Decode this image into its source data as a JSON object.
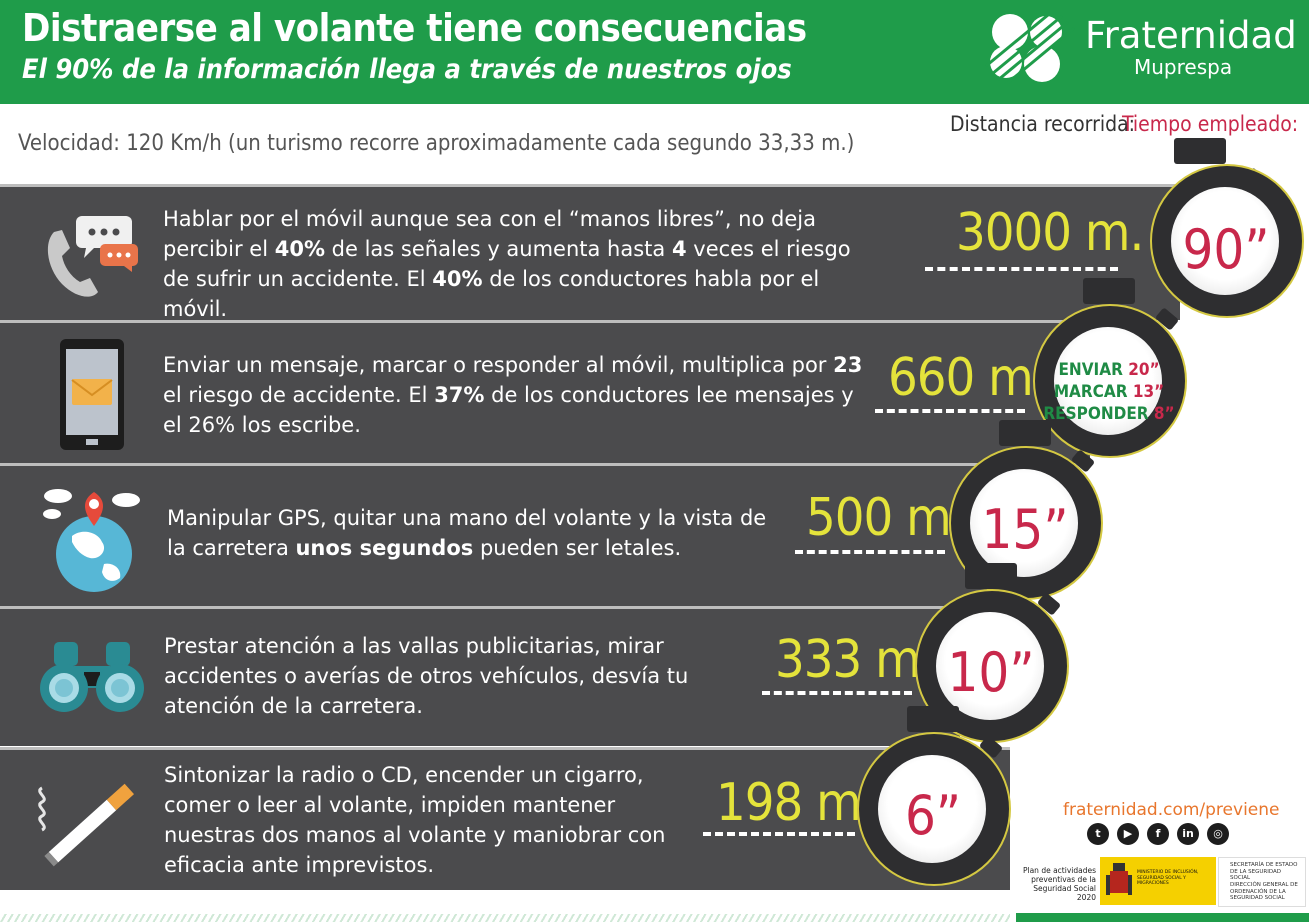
{
  "header": {
    "title": "Distraerse al volante tiene consecuencias",
    "subtitle": "El 90% de la información llega a través de nuestros ojos",
    "brand_name": "Fraternidad",
    "brand_sub": "Muprespa"
  },
  "speed_note": "Velocidad: 120 Km/h (un turismo recorre aproximadamente cada segundo 33,33 m.)",
  "distance_label": "Distancia recorrida:",
  "time_label": "Tiempo empleado:",
  "rows": [
    {
      "icon": "phone-chat-icon",
      "text_parts": [
        "Hablar por el móvil aunque sea con el “manos libres”, no deja percibir el ",
        "40%",
        " de las señales y aumenta hasta ",
        "4",
        " veces el riesgo de sufrir un accidente. El ",
        "40%",
        " de los conductores habla por el móvil."
      ],
      "distance": "3000 m.",
      "time": "90”"
    },
    {
      "icon": "smartphone-message-icon",
      "text_parts": [
        "Enviar un mensaje, marcar o responder al móvil, multiplica por ",
        "23",
        " el riesgo de accidente. El ",
        "37%",
        " de los conductores lee mensajes y el 26% los escribe."
      ],
      "distance": "660 m.",
      "time_lines": [
        {
          "label": "ENVIAR",
          "value": "20”"
        },
        {
          "label": "MARCAR",
          "value": "13”"
        },
        {
          "label": "RESPONDER",
          "value": "8”"
        }
      ]
    },
    {
      "icon": "gps-globe-icon",
      "text_parts": [
        "Manipular GPS, quitar una mano del volante y la vista de la carretera ",
        "unos segundos",
        " pueden ser letales."
      ],
      "distance": "500 m.",
      "time": "15”"
    },
    {
      "icon": "binoculars-icon",
      "text": "Prestar atención a las vallas publicitarias, mirar accidentes o averías de otros vehículos, desvía tu atención de la carretera.",
      "distance": "333 m.",
      "time": "10”"
    },
    {
      "icon": "cigarette-icon",
      "text": "Sintonizar la radio o CD, encender un cigarro, comer o leer al volante, impiden mantener nuestras dos manos al volante y maniobrar con eficacia ante imprevistos.",
      "distance": "198 m.",
      "time": "6”"
    }
  ],
  "footer": {
    "url": "fraternidad.com/previene",
    "social": [
      "twitter-icon",
      "youtube-icon",
      "facebook-icon",
      "linkedin-icon",
      "instagram-icon"
    ],
    "plan_text": "Plan de actividades preventivas de la Seguridad Social 2020",
    "ministry_text": "MINISTERIO DE INCLUSIÓN, SEGURIDAD SOCIAL Y MIGRACIONES",
    "ss_line1": "SECRETARÍA DE ESTADO DE LA SEGURIDAD SOCIAL",
    "ss_line2": "DIRECCIÓN GENERAL DE ORDENACIÓN DE LA SEGURIDAD SOCIAL"
  },
  "colors": {
    "header_green": "#1f9c4a",
    "band_gray": "#4b4b4d",
    "distance_yellow": "#e4e33b",
    "time_red": "#c8284b",
    "url_orange": "#e8762d"
  }
}
